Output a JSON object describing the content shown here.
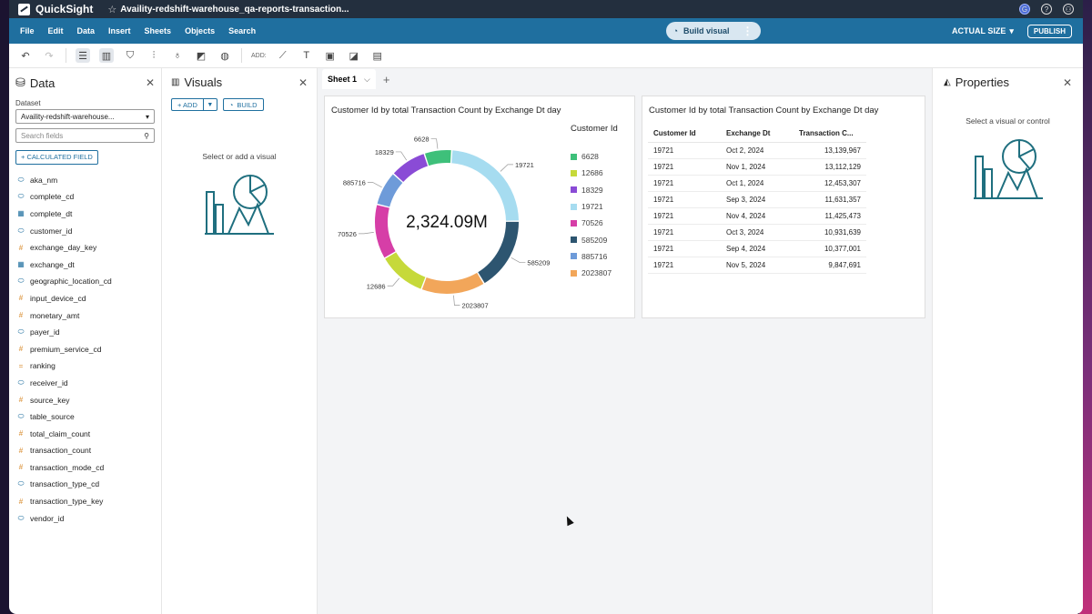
{
  "titlebar": {
    "app_name": "QuickSight",
    "analysis_name": "Availity-redshift-warehouse_qa-reports-transaction..."
  },
  "menu": {
    "items": [
      "File",
      "Edit",
      "Data",
      "Insert",
      "Sheets",
      "Objects",
      "Search"
    ],
    "build_visual": "Build visual",
    "actual_size": "ACTUAL SIZE",
    "publish": "PUBLISH"
  },
  "toolbar": {
    "add_label": "ADD:"
  },
  "data_pane": {
    "title": "Data",
    "dataset_label": "Dataset",
    "dataset_value": "Availity-redshift-warehouse...",
    "search_placeholder": "Search fields",
    "calc_field_label": "+ CALCULATED FIELD",
    "fields": [
      {
        "name": "aka_nm",
        "kind": "dim"
      },
      {
        "name": "complete_cd",
        "kind": "dim"
      },
      {
        "name": "complete_dt",
        "kind": "date"
      },
      {
        "name": "customer_id",
        "kind": "dim"
      },
      {
        "name": "exchange_day_key",
        "kind": "meas"
      },
      {
        "name": "exchange_dt",
        "kind": "date"
      },
      {
        "name": "geographic_location_cd",
        "kind": "dim"
      },
      {
        "name": "input_device_cd",
        "kind": "meas"
      },
      {
        "name": "monetary_amt",
        "kind": "meas"
      },
      {
        "name": "payer_id",
        "kind": "dim"
      },
      {
        "name": "premium_service_cd",
        "kind": "meas"
      },
      {
        "name": "ranking",
        "kind": "calc"
      },
      {
        "name": "receiver_id",
        "kind": "dim"
      },
      {
        "name": "source_key",
        "kind": "meas"
      },
      {
        "name": "table_source",
        "kind": "dim"
      },
      {
        "name": "total_claim_count",
        "kind": "meas"
      },
      {
        "name": "transaction_count",
        "kind": "meas"
      },
      {
        "name": "transaction_mode_cd",
        "kind": "meas"
      },
      {
        "name": "transaction_type_cd",
        "kind": "dim"
      },
      {
        "name": "transaction_type_key",
        "kind": "meas"
      },
      {
        "name": "vendor_id",
        "kind": "dim"
      }
    ]
  },
  "visuals_pane": {
    "title": "Visuals",
    "add_label": "+ ADD",
    "build_label": "BUILD",
    "hint": "Select or add a visual"
  },
  "sheet": {
    "tab_label": "Sheet 1"
  },
  "donut_card": {
    "title": "Customer Id by total Transaction Count by Exchange Dt day",
    "legend_title": "Customer Id",
    "total_label": "2,324.09M"
  },
  "table_card": {
    "title": "Customer Id by total Transaction Count by Exchange Dt day",
    "headers": [
      "Customer Id",
      "Exchange Dt",
      "Transaction C..."
    ],
    "rows": [
      [
        "19721",
        "Oct 2, 2024",
        "13,139,967"
      ],
      [
        "19721",
        "Nov 1, 2024",
        "13,112,129"
      ],
      [
        "19721",
        "Oct 1, 2024",
        "12,453,307"
      ],
      [
        "19721",
        "Sep 3, 2024",
        "11,631,357"
      ],
      [
        "19721",
        "Nov 4, 2024",
        "11,425,473"
      ],
      [
        "19721",
        "Oct 3, 2024",
        "10,931,639"
      ],
      [
        "19721",
        "Sep 4, 2024",
        "10,377,001"
      ],
      [
        "19721",
        "Nov 5, 2024",
        "9,847,691"
      ]
    ]
  },
  "properties_pane": {
    "title": "Properties",
    "hint": "Select a visual or control"
  },
  "chart_data": {
    "type": "pie",
    "title": "Customer Id by total Transaction Count by Exchange Dt day",
    "legend_title": "Customer Id",
    "legend_position": "right",
    "center_label": "2,324.09M",
    "categories": [
      "6628",
      "12686",
      "18329",
      "19721",
      "70526",
      "585209",
      "885716",
      "2023807"
    ],
    "slice_order": [
      "19721",
      "585209",
      "2023807",
      "12686",
      "70526",
      "885716",
      "18329",
      "6628"
    ],
    "values": {
      "19721": 23.0,
      "585209": 16.0,
      "2023807": 14.0,
      "12686": 10.5,
      "70526": 12.0,
      "885716": 7.5,
      "18329": 8.0,
      "6628": 6.0
    },
    "colors": {
      "6628": "#3ec07a",
      "12686": "#c6d93a",
      "18329": "#8a4bd6",
      "19721": "#a6dcf0",
      "70526": "#d63ea7",
      "585209": "#2d5570",
      "885716": "#6e9bd9",
      "2023807": "#f2a65a"
    }
  }
}
